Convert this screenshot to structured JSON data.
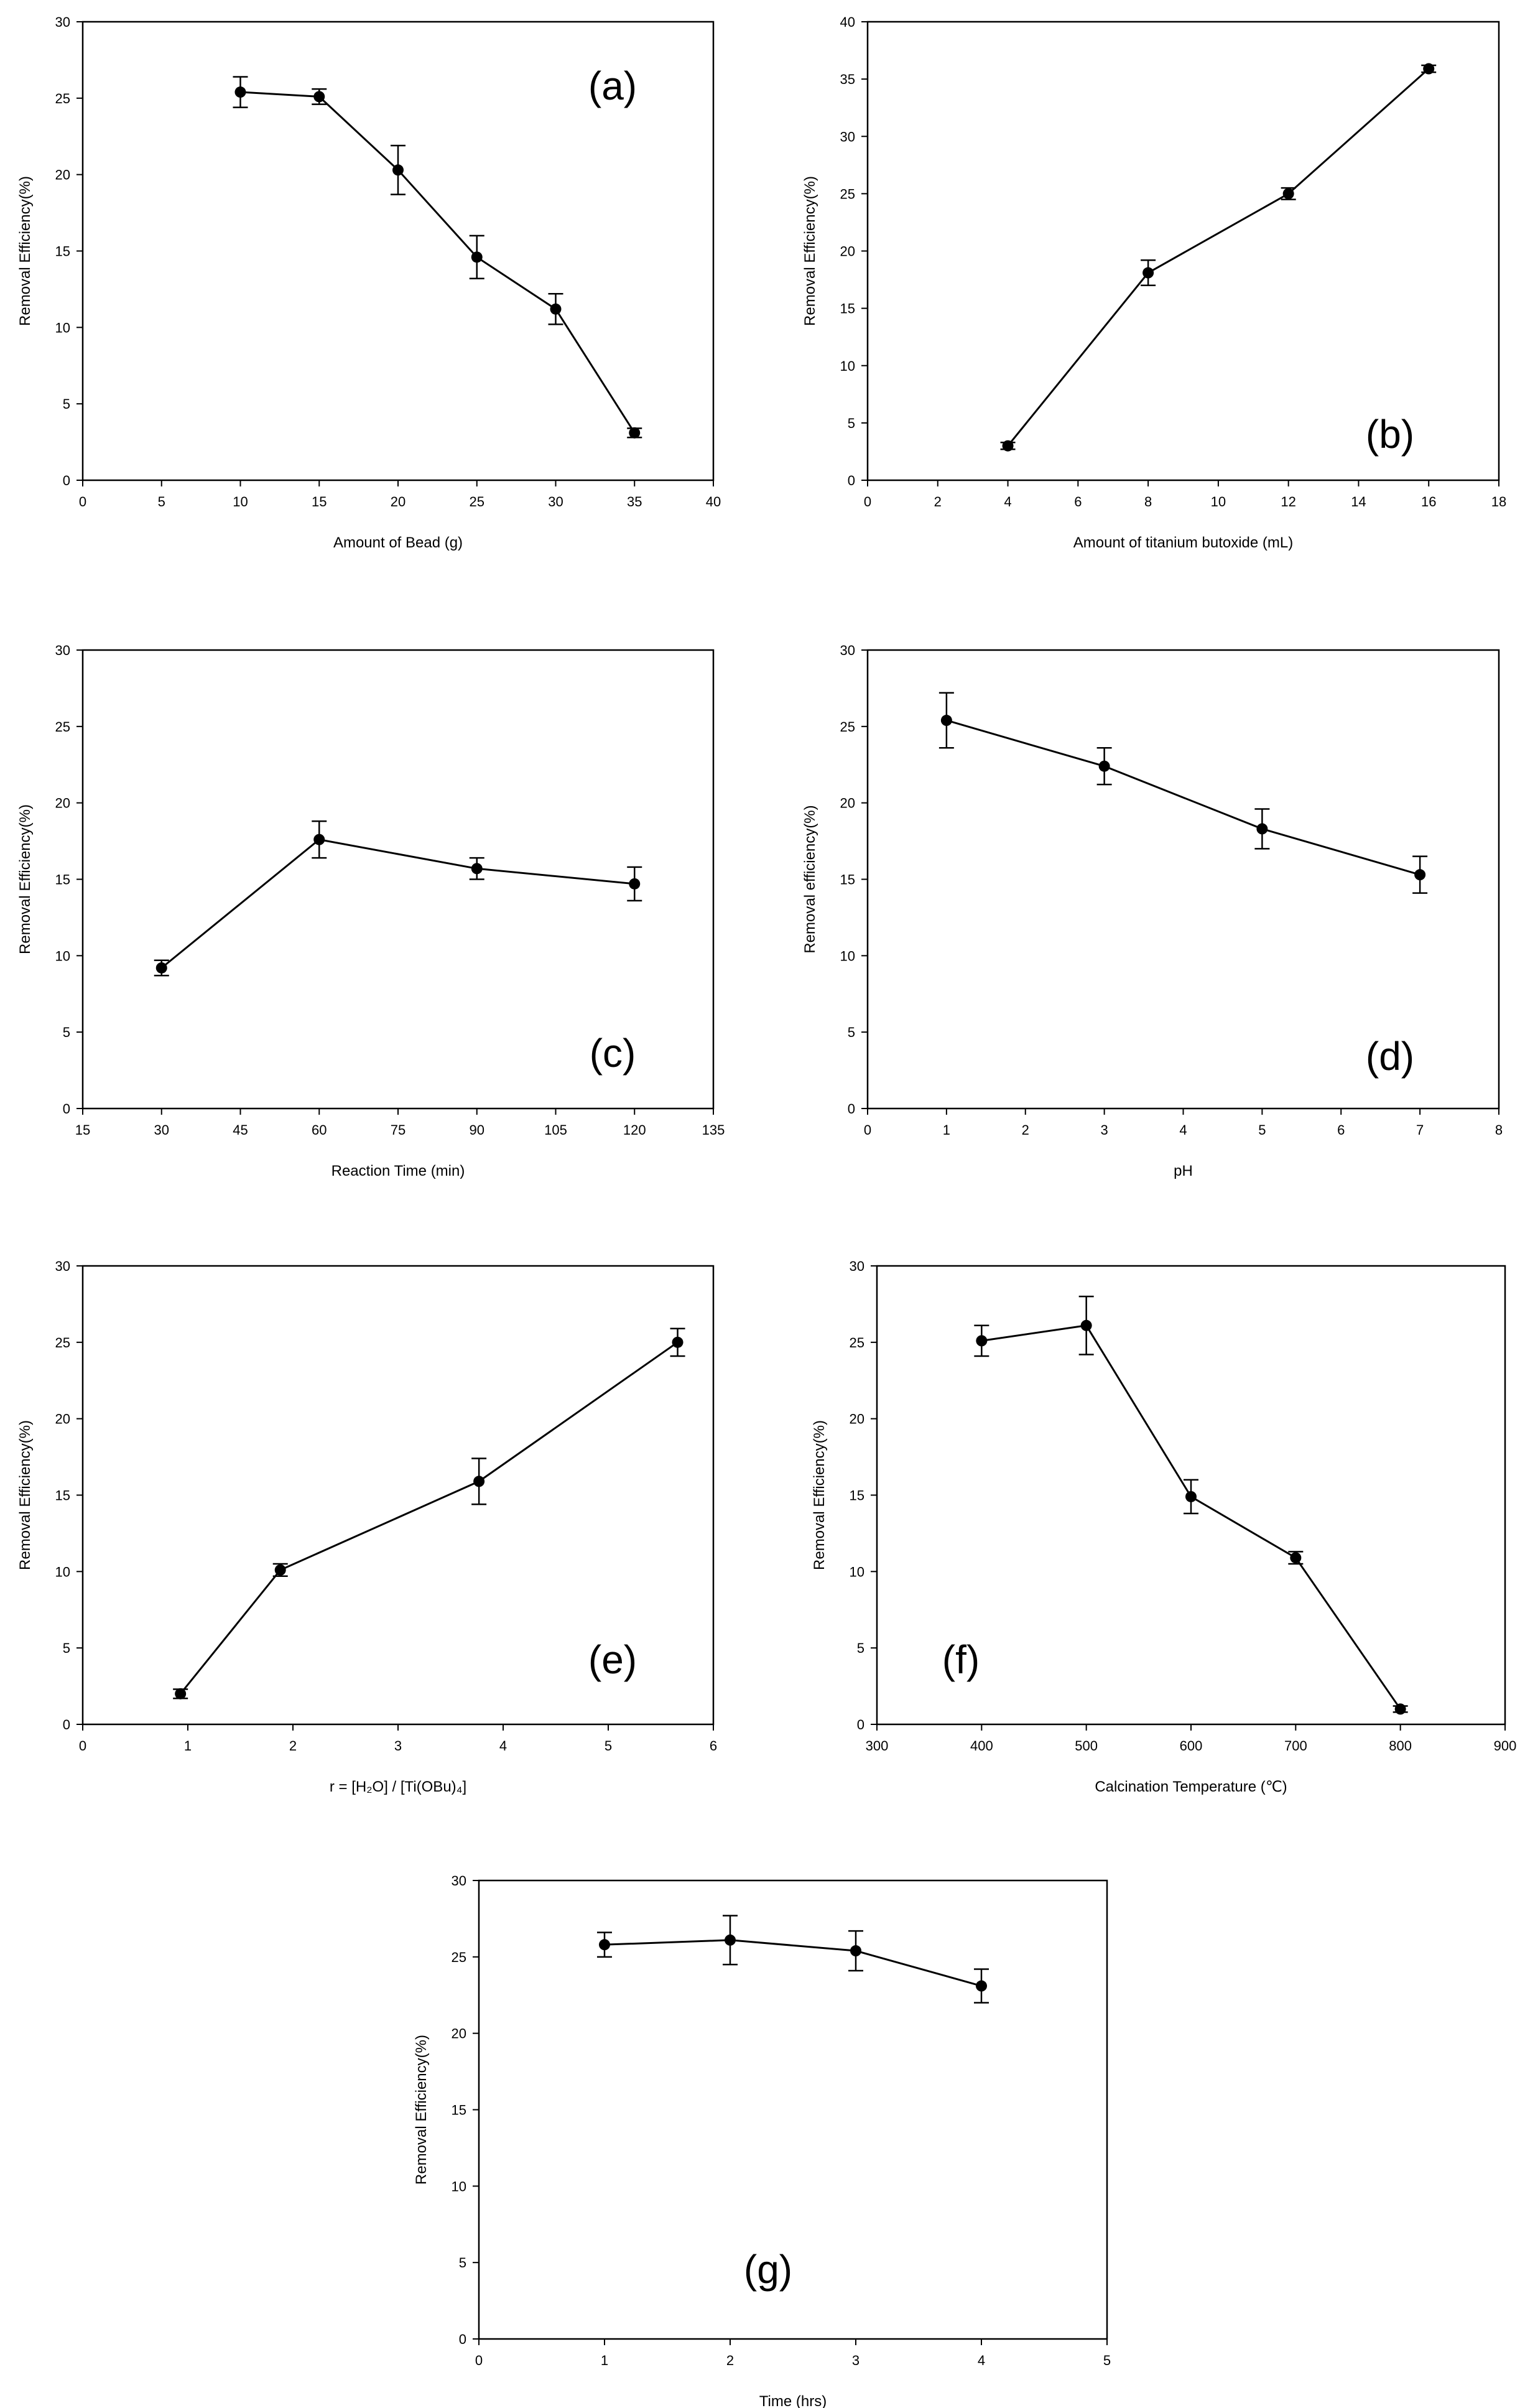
{
  "chart_data": [
    {
      "id": "a",
      "type": "line",
      "title": "",
      "panel_label": "(a)",
      "xlabel": "Amount of Bead (g)",
      "ylabel": "Removal Efficiency(%)",
      "xlim": [
        0,
        40
      ],
      "ylim": [
        0,
        30
      ],
      "xticks": [
        0,
        5,
        10,
        15,
        20,
        25,
        30,
        35,
        40
      ],
      "yticks": [
        0,
        5,
        10,
        15,
        20,
        25,
        30
      ],
      "xtick_labels": [
        "0",
        "5",
        "10",
        "15",
        "20",
        "25",
        "30",
        "35",
        "40"
      ],
      "ytick_labels": [
        "0",
        "5",
        "10",
        "15",
        "20",
        "25",
        "30"
      ],
      "x": [
        10,
        15,
        20,
        25,
        30,
        35
      ],
      "y": [
        25.4,
        25.1,
        20.3,
        14.6,
        11.2,
        3.1
      ],
      "err": [
        1.0,
        0.5,
        1.6,
        1.4,
        1.0,
        0.3
      ]
    },
    {
      "id": "b",
      "type": "line",
      "title": "",
      "panel_label": "(b)",
      "xlabel": "Amount of titanium butoxide (mL)",
      "ylabel": "Removal Efficiency(%)",
      "xlim": [
        0,
        18
      ],
      "ylim": [
        0,
        40
      ],
      "xticks": [
        0,
        2,
        4,
        6,
        8,
        10,
        12,
        14,
        16,
        18
      ],
      "yticks": [
        0,
        5,
        10,
        15,
        20,
        25,
        30,
        35,
        40
      ],
      "xtick_labels": [
        "0",
        "2",
        "4",
        "6",
        "8",
        "10",
        "12",
        "14",
        "16",
        "18"
      ],
      "ytick_labels": [
        "0",
        "5",
        "10",
        "15",
        "20",
        "25",
        "30",
        "35",
        "40"
      ],
      "x": [
        4,
        8,
        12,
        16
      ],
      "y": [
        3.0,
        18.1,
        25.0,
        35.9
      ],
      "err": [
        0.3,
        1.1,
        0.5,
        0.3
      ]
    },
    {
      "id": "c",
      "type": "line",
      "title": "",
      "panel_label": "(c)",
      "xlabel": "Reaction Time (min)",
      "ylabel": "Removal Efficiency(%)",
      "xlim": [
        15,
        135
      ],
      "ylim": [
        0,
        30
      ],
      "xticks": [
        15,
        30,
        45,
        60,
        75,
        90,
        105,
        120,
        135
      ],
      "yticks": [
        0,
        5,
        10,
        15,
        20,
        25,
        30
      ],
      "xtick_labels": [
        "15",
        "30",
        "45",
        "60",
        "75",
        "90",
        "105",
        "120",
        "135"
      ],
      "ytick_labels": [
        "0",
        "5",
        "10",
        "15",
        "20",
        "25",
        "30"
      ],
      "x": [
        30,
        60,
        90,
        120
      ],
      "y": [
        9.2,
        17.6,
        15.7,
        14.7
      ],
      "err": [
        0.5,
        1.2,
        0.7,
        1.1
      ]
    },
    {
      "id": "d",
      "type": "line",
      "title": "",
      "panel_label": "(d)",
      "xlabel": "pH",
      "ylabel": "Removal efficiency(%)",
      "xlim": [
        0,
        8
      ],
      "ylim": [
        0,
        30
      ],
      "xticks": [
        0,
        1,
        2,
        3,
        4,
        5,
        6,
        7,
        8
      ],
      "yticks": [
        0,
        5,
        10,
        15,
        20,
        25,
        30
      ],
      "xtick_labels": [
        "0",
        "1",
        "2",
        "3",
        "4",
        "5",
        "6",
        "7",
        "8"
      ],
      "ytick_labels": [
        "0",
        "5",
        "10",
        "15",
        "20",
        "25",
        "30"
      ],
      "x": [
        1,
        3,
        5,
        7
      ],
      "y": [
        25.4,
        22.4,
        18.3,
        15.3
      ],
      "err": [
        1.8,
        1.2,
        1.3,
        1.2
      ]
    },
    {
      "id": "e",
      "type": "line",
      "title": "",
      "panel_label": "(e)",
      "xlabel": "r = [H₂O] / [Ti(OBu)₄]",
      "ylabel": "Removal Efficiency(%)",
      "xlim": [
        0,
        6
      ],
      "ylim": [
        0,
        30
      ],
      "xticks": [
        0,
        1,
        2,
        3,
        4,
        5,
        6
      ],
      "yticks": [
        0,
        5,
        10,
        15,
        20,
        25,
        30
      ],
      "xtick_labels": [
        "0",
        "1",
        "2",
        "3",
        "4",
        "5",
        "6"
      ],
      "ytick_labels": [
        "0",
        "5",
        "10",
        "15",
        "20",
        "25",
        "30"
      ],
      "x": [
        0.93,
        1.88,
        3.77,
        5.66
      ],
      "y": [
        2.0,
        10.1,
        15.9,
        25.0
      ],
      "err": [
        0.3,
        0.4,
        1.5,
        0.9
      ]
    },
    {
      "id": "f",
      "type": "line",
      "title": "",
      "panel_label": "(f)",
      "xlabel": "Calcination Temperature (℃)",
      "ylabel": "Removal Efficiency(%)",
      "xlim": [
        300,
        900
      ],
      "ylim": [
        0,
        30
      ],
      "xticks": [
        300,
        400,
        500,
        600,
        700,
        800,
        900
      ],
      "yticks": [
        0,
        5,
        10,
        15,
        20,
        25,
        30
      ],
      "xtick_labels": [
        "300",
        "400",
        "500",
        "600",
        "700",
        "800",
        "900"
      ],
      "ytick_labels": [
        "0",
        "5",
        "10",
        "15",
        "20",
        "25",
        "30"
      ],
      "x": [
        400,
        500,
        600,
        700,
        800
      ],
      "y": [
        25.1,
        26.1,
        14.9,
        10.9,
        1.0
      ],
      "err": [
        1.0,
        1.9,
        1.1,
        0.4,
        0.2
      ]
    },
    {
      "id": "g",
      "type": "line",
      "title": "",
      "panel_label": "(g)",
      "xlabel": "Time (hrs)",
      "ylabel": "Removal Efficiency(%)",
      "xlim": [
        0,
        5
      ],
      "ylim": [
        0,
        30
      ],
      "xticks": [
        0,
        1,
        2,
        3,
        4,
        5
      ],
      "yticks": [
        0,
        5,
        10,
        15,
        20,
        25,
        30
      ],
      "xtick_labels": [
        "0",
        "1",
        "2",
        "3",
        "4",
        "5"
      ],
      "ytick_labels": [
        "0",
        "5",
        "10",
        "15",
        "20",
        "25",
        "30"
      ],
      "x": [
        1,
        2,
        3,
        4
      ],
      "y": [
        25.8,
        26.1,
        25.4,
        23.1
      ],
      "err": [
        0.8,
        1.6,
        1.3,
        1.1
      ]
    }
  ]
}
